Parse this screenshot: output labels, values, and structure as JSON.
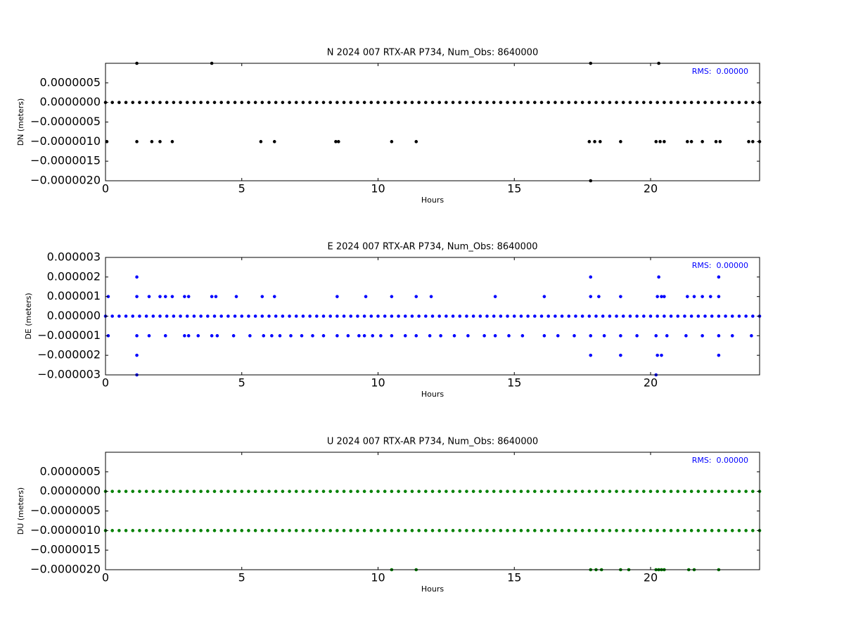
{
  "chart_data": [
    {
      "type": "scatter",
      "title": "N 2024 007 RTX-AR  P734, Num_Obs: 8640000",
      "xlabel": "Hours",
      "ylabel": "DN (meters)",
      "annotation": "RMS:  0.00000",
      "color": "#000000",
      "xlim": [
        0,
        24
      ],
      "xticks": [
        0,
        5,
        10,
        15,
        20
      ],
      "ylim": [
        -2e-06,
        1e-06
      ],
      "yticks": [
        {
          "value": -2e-06,
          "label": "−0.0000020"
        },
        {
          "value": -1.5e-06,
          "label": "−0.0000015"
        },
        {
          "value": -1e-06,
          "label": "−0.0000010"
        },
        {
          "value": -5e-07,
          "label": "−0.0000005"
        },
        {
          "value": 0,
          "label": "0.0000000"
        },
        {
          "value": 5e-07,
          "label": "0.0000005"
        }
      ],
      "x": [
        0,
        0.25,
        0.5,
        0.75,
        1,
        1.25,
        1.5,
        1.75,
        2,
        2.25,
        2.5,
        2.75,
        3,
        3.25,
        3.5,
        3.75,
        4,
        4.25,
        4.5,
        4.75,
        5,
        5.25,
        5.5,
        5.75,
        6,
        6.25,
        6.5,
        6.75,
        7,
        7.25,
        7.5,
        7.75,
        8,
        8.25,
        8.5,
        8.75,
        9,
        9.25,
        9.5,
        9.75,
        10,
        10.25,
        10.5,
        10.75,
        11,
        11.25,
        11.5,
        11.75,
        12,
        12.25,
        12.5,
        12.75,
        13,
        13.25,
        13.5,
        13.75,
        14,
        14.25,
        14.5,
        14.75,
        15,
        15.25,
        15.5,
        15.75,
        16,
        16.25,
        16.5,
        16.75,
        17,
        17.25,
        17.5,
        17.75,
        18,
        18.25,
        18.5,
        18.75,
        19,
        19.25,
        19.5,
        19.75,
        20,
        20.25,
        20.5,
        20.75,
        21,
        21.25,
        21.5,
        21.75,
        22,
        22.25,
        22.5,
        22.75,
        23,
        23.25,
        23.5,
        23.75,
        24,
        0.05,
        1.15,
        1.7,
        2,
        2.45,
        5.7,
        6.2,
        8.45,
        8.55,
        10.5,
        11.4,
        17.75,
        17.95,
        18.15,
        18.9,
        20.2,
        20.35,
        20.5,
        21.35,
        21.5,
        21.9,
        22.4,
        22.55,
        23.6,
        23.75,
        24,
        1.15,
        3.9,
        17.8,
        20.3,
        17.8
      ],
      "values": [
        0,
        0,
        0,
        0,
        0,
        0,
        0,
        0,
        0,
        0,
        0,
        0,
        0,
        0,
        0,
        0,
        0,
        0,
        0,
        0,
        0,
        0,
        0,
        0,
        0,
        0,
        0,
        0,
        0,
        0,
        0,
        0,
        0,
        0,
        0,
        0,
        0,
        0,
        0,
        0,
        0,
        0,
        0,
        0,
        0,
        0,
        0,
        0,
        0,
        0,
        0,
        0,
        0,
        0,
        0,
        0,
        0,
        0,
        0,
        0,
        0,
        0,
        0,
        0,
        0,
        0,
        0,
        0,
        0,
        0,
        0,
        0,
        0,
        0,
        0,
        0,
        0,
        0,
        0,
        0,
        0,
        0,
        0,
        0,
        0,
        0,
        0,
        0,
        0,
        0,
        0,
        0,
        0,
        0,
        0,
        0,
        0,
        -1e-06,
        -1e-06,
        -1e-06,
        -1e-06,
        -1e-06,
        -1e-06,
        -1e-06,
        -1e-06,
        -1e-06,
        -1e-06,
        -1e-06,
        -1e-06,
        -1e-06,
        -1e-06,
        -1e-06,
        -1e-06,
        -1e-06,
        -1e-06,
        -1e-06,
        -1e-06,
        -1e-06,
        -1e-06,
        -1e-06,
        -1e-06,
        -1e-06,
        -1e-06,
        1e-06,
        1e-06,
        1e-06,
        1e-06,
        -2e-06
      ]
    },
    {
      "type": "scatter",
      "title": "E 2024 007 RTX-AR  P734, Num_Obs: 8640000",
      "xlabel": "Hours",
      "ylabel": "DE (meters)",
      "annotation": "RMS:  0.00000",
      "color": "#0000ff",
      "xlim": [
        0,
        24
      ],
      "xticks": [
        0,
        5,
        10,
        15,
        20
      ],
      "ylim": [
        -3e-06,
        3e-06
      ],
      "yticks": [
        {
          "value": -3e-06,
          "label": "−0.000003"
        },
        {
          "value": -2e-06,
          "label": "−0.000002"
        },
        {
          "value": -1e-06,
          "label": "−0.000001"
        },
        {
          "value": 0,
          "label": "0.000000"
        },
        {
          "value": 1e-06,
          "label": "0.000001"
        },
        {
          "value": 2e-06,
          "label": "0.000002"
        },
        {
          "value": 3e-06,
          "label": "0.000003"
        }
      ],
      "x": [
        0,
        0.25,
        0.5,
        0.75,
        1,
        1.25,
        1.5,
        1.75,
        2,
        2.25,
        2.5,
        2.75,
        3,
        3.25,
        3.5,
        3.75,
        4,
        4.25,
        4.5,
        4.75,
        5,
        5.25,
        5.5,
        5.75,
        6,
        6.25,
        6.5,
        6.75,
        7,
        7.25,
        7.5,
        7.75,
        8,
        8.25,
        8.5,
        8.75,
        9,
        9.25,
        9.5,
        9.75,
        10,
        10.25,
        10.5,
        10.75,
        11,
        11.25,
        11.5,
        11.75,
        12,
        12.25,
        12.5,
        12.75,
        13,
        13.25,
        13.5,
        13.75,
        14,
        14.25,
        14.5,
        14.75,
        15,
        15.25,
        15.5,
        15.75,
        16,
        16.25,
        16.5,
        16.75,
        17,
        17.25,
        17.5,
        17.75,
        18,
        18.25,
        18.5,
        18.75,
        19,
        19.25,
        19.5,
        19.75,
        20,
        20.25,
        20.5,
        20.75,
        21,
        21.25,
        21.5,
        21.75,
        22,
        22.25,
        22.5,
        22.75,
        23,
        23.25,
        23.5,
        23.75,
        24,
        0.1,
        1.15,
        1.6,
        2,
        2.2,
        2.45,
        2.9,
        3.05,
        3.9,
        4.05,
        4.8,
        5.75,
        6.2,
        8.5,
        9.55,
        10.5,
        11.4,
        11.95,
        14.3,
        16.1,
        17.8,
        18.1,
        18.9,
        20.25,
        20.4,
        20.5,
        21.35,
        21.6,
        21.9,
        22.2,
        22.5,
        0.1,
        1.15,
        1.6,
        2.2,
        2.9,
        3.05,
        3.4,
        3.9,
        4.1,
        4.7,
        5.3,
        5.8,
        6.1,
        6.4,
        6.8,
        7.2,
        7.6,
        8,
        8.5,
        8.9,
        9.3,
        9.5,
        9.8,
        10.1,
        10.5,
        11,
        11.4,
        11.9,
        12.3,
        12.8,
        13.3,
        13.9,
        14.3,
        14.8,
        15.3,
        16.1,
        16.6,
        17.2,
        17.8,
        18.3,
        18.9,
        19.5,
        20.2,
        20.6,
        21.3,
        21.9,
        22.5,
        23,
        23.7,
        1.15,
        17.8,
        20.3,
        22.5,
        1.15,
        17.8,
        18.9,
        20.25,
        20.4,
        22.5,
        1.15,
        20.2
      ],
      "values": [
        0,
        0,
        0,
        0,
        0,
        0,
        0,
        0,
        0,
        0,
        0,
        0,
        0,
        0,
        0,
        0,
        0,
        0,
        0,
        0,
        0,
        0,
        0,
        0,
        0,
        0,
        0,
        0,
        0,
        0,
        0,
        0,
        0,
        0,
        0,
        0,
        0,
        0,
        0,
        0,
        0,
        0,
        0,
        0,
        0,
        0,
        0,
        0,
        0,
        0,
        0,
        0,
        0,
        0,
        0,
        0,
        0,
        0,
        0,
        0,
        0,
        0,
        0,
        0,
        0,
        0,
        0,
        0,
        0,
        0,
        0,
        0,
        0,
        0,
        0,
        0,
        0,
        0,
        0,
        0,
        0,
        0,
        0,
        0,
        0,
        0,
        0,
        0,
        0,
        0,
        0,
        0,
        0,
        0,
        0,
        0,
        0,
        1e-06,
        1e-06,
        1e-06,
        1e-06,
        1e-06,
        1e-06,
        1e-06,
        1e-06,
        1e-06,
        1e-06,
        1e-06,
        1e-06,
        1e-06,
        1e-06,
        1e-06,
        1e-06,
        1e-06,
        1e-06,
        1e-06,
        1e-06,
        1e-06,
        1e-06,
        1e-06,
        1e-06,
        1e-06,
        1e-06,
        1e-06,
        1e-06,
        1e-06,
        1e-06,
        1e-06,
        -1e-06,
        -1e-06,
        -1e-06,
        -1e-06,
        -1e-06,
        -1e-06,
        -1e-06,
        -1e-06,
        -1e-06,
        -1e-06,
        -1e-06,
        -1e-06,
        -1e-06,
        -1e-06,
        -1e-06,
        -1e-06,
        -1e-06,
        -1e-06,
        -1e-06,
        -1e-06,
        -1e-06,
        -1e-06,
        -1e-06,
        -1e-06,
        -1e-06,
        -1e-06,
        -1e-06,
        -1e-06,
        -1e-06,
        -1e-06,
        -1e-06,
        -1e-06,
        -1e-06,
        -1e-06,
        -1e-06,
        -1e-06,
        -1e-06,
        -1e-06,
        -1e-06,
        -1e-06,
        -1e-06,
        -1e-06,
        -1e-06,
        -1e-06,
        -1e-06,
        -1e-06,
        -1e-06,
        -1e-06,
        -1e-06,
        2e-06,
        2e-06,
        2e-06,
        2e-06,
        -2e-06,
        -2e-06,
        -2e-06,
        -2e-06,
        -2e-06,
        -2e-06,
        -3e-06,
        -3e-06
      ]
    },
    {
      "type": "scatter",
      "title": "U 2024 007 RTX-AR  P734, Num_Obs: 8640000",
      "xlabel": "Hours",
      "ylabel": "DU (meters)",
      "annotation": "RMS:  0.00000",
      "color": "#008000",
      "xlim": [
        0,
        24
      ],
      "xticks": [
        0,
        5,
        10,
        15,
        20
      ],
      "ylim": [
        -2e-06,
        1e-06
      ],
      "yticks": [
        {
          "value": -2e-06,
          "label": "−0.0000020"
        },
        {
          "value": -1.5e-06,
          "label": "−0.0000015"
        },
        {
          "value": -1e-06,
          "label": "−0.0000010"
        },
        {
          "value": -5e-07,
          "label": "−0.0000005"
        },
        {
          "value": 0,
          "label": "0.0000000"
        },
        {
          "value": 5e-07,
          "label": "0.0000005"
        }
      ],
      "x": [
        0,
        0.25,
        0.5,
        0.75,
        1,
        1.25,
        1.5,
        1.75,
        2,
        2.25,
        2.5,
        2.75,
        3,
        3.25,
        3.5,
        3.75,
        4,
        4.25,
        4.5,
        4.75,
        5,
        5.25,
        5.5,
        5.75,
        6,
        6.25,
        6.5,
        6.75,
        7,
        7.25,
        7.5,
        7.75,
        8,
        8.25,
        8.5,
        8.75,
        9,
        9.25,
        9.5,
        9.75,
        10,
        10.25,
        10.5,
        10.75,
        11,
        11.25,
        11.5,
        11.75,
        12,
        12.25,
        12.5,
        12.75,
        13,
        13.25,
        13.5,
        13.75,
        14,
        14.25,
        14.5,
        14.75,
        15,
        15.25,
        15.5,
        15.75,
        16,
        16.25,
        16.5,
        16.75,
        17,
        17.25,
        17.5,
        17.75,
        18,
        18.25,
        18.5,
        18.75,
        19,
        19.25,
        19.5,
        19.75,
        20,
        20.25,
        20.5,
        20.75,
        21,
        21.25,
        21.5,
        21.75,
        22,
        22.25,
        22.5,
        22.75,
        23,
        23.25,
        23.5,
        23.75,
        24,
        0,
        0.25,
        0.5,
        0.75,
        1,
        1.25,
        1.5,
        1.75,
        2,
        2.25,
        2.5,
        2.75,
        3,
        3.25,
        3.5,
        3.75,
        4,
        4.25,
        4.5,
        4.75,
        5,
        5.25,
        5.5,
        5.75,
        6,
        6.25,
        6.5,
        6.75,
        7,
        7.25,
        7.5,
        7.75,
        8,
        8.25,
        8.5,
        8.75,
        9,
        9.25,
        9.5,
        9.75,
        10,
        10.25,
        10.5,
        10.75,
        11,
        11.25,
        11.5,
        11.75,
        12,
        12.25,
        12.5,
        12.75,
        13,
        13.25,
        13.5,
        13.75,
        14,
        14.25,
        14.5,
        14.75,
        15,
        15.25,
        15.5,
        15.75,
        16,
        16.25,
        16.5,
        16.75,
        17,
        17.25,
        17.5,
        17.75,
        18,
        18.25,
        18.5,
        18.75,
        19,
        19.25,
        19.5,
        19.75,
        20,
        20.25,
        20.5,
        20.75,
        21,
        21.25,
        21.5,
        21.75,
        22,
        22.25,
        22.5,
        22.75,
        23,
        23.25,
        23.5,
        23.75,
        24,
        10.5,
        11.4,
        17.8,
        18,
        18.2,
        18.9,
        19.2,
        20.2,
        20.3,
        20.4,
        20.5,
        21.4,
        21.6,
        22.5
      ],
      "values": [
        0,
        0,
        0,
        0,
        0,
        0,
        0,
        0,
        0,
        0,
        0,
        0,
        0,
        0,
        0,
        0,
        0,
        0,
        0,
        0,
        0,
        0,
        0,
        0,
        0,
        0,
        0,
        0,
        0,
        0,
        0,
        0,
        0,
        0,
        0,
        0,
        0,
        0,
        0,
        0,
        0,
        0,
        0,
        0,
        0,
        0,
        0,
        0,
        0,
        0,
        0,
        0,
        0,
        0,
        0,
        0,
        0,
        0,
        0,
        0,
        0,
        0,
        0,
        0,
        0,
        0,
        0,
        0,
        0,
        0,
        0,
        0,
        0,
        0,
        0,
        0,
        0,
        0,
        0,
        0,
        0,
        0,
        0,
        0,
        0,
        0,
        0,
        0,
        0,
        0,
        0,
        0,
        0,
        0,
        0,
        0,
        0,
        -1e-06,
        -1e-06,
        -1e-06,
        -1e-06,
        -1e-06,
        -1e-06,
        -1e-06,
        -1e-06,
        -1e-06,
        -1e-06,
        -1e-06,
        -1e-06,
        -1e-06,
        -1e-06,
        -1e-06,
        -1e-06,
        -1e-06,
        -1e-06,
        -1e-06,
        -1e-06,
        -1e-06,
        -1e-06,
        -1e-06,
        -1e-06,
        -1e-06,
        -1e-06,
        -1e-06,
        -1e-06,
        -1e-06,
        -1e-06,
        -1e-06,
        -1e-06,
        -1e-06,
        -1e-06,
        -1e-06,
        -1e-06,
        -1e-06,
        -1e-06,
        -1e-06,
        -1e-06,
        -1e-06,
        -1e-06,
        -1e-06,
        -1e-06,
        -1e-06,
        -1e-06,
        -1e-06,
        -1e-06,
        -1e-06,
        -1e-06,
        -1e-06,
        -1e-06,
        -1e-06,
        -1e-06,
        -1e-06,
        -1e-06,
        -1e-06,
        -1e-06,
        -1e-06,
        -1e-06,
        -1e-06,
        -1e-06,
        -1e-06,
        -1e-06,
        -1e-06,
        -1e-06,
        -1e-06,
        -1e-06,
        -1e-06,
        -1e-06,
        -1e-06,
        -1e-06,
        -1e-06,
        -1e-06,
        -1e-06,
        -1e-06,
        -1e-06,
        -1e-06,
        -1e-06,
        -1e-06,
        -1e-06,
        -1e-06,
        -1e-06,
        -1e-06,
        -1e-06,
        -1e-06,
        -1e-06,
        -1e-06,
        -1e-06,
        -1e-06,
        -1e-06,
        -1e-06,
        -1e-06,
        -1e-06,
        -1e-06,
        -1e-06,
        -1e-06,
        -2e-06,
        -2e-06,
        -2e-06,
        -2e-06,
        -2e-06,
        -2e-06,
        -2e-06,
        -2e-06,
        -2e-06,
        -2e-06,
        -2e-06,
        -2e-06,
        -2e-06,
        -2e-06
      ]
    }
  ]
}
